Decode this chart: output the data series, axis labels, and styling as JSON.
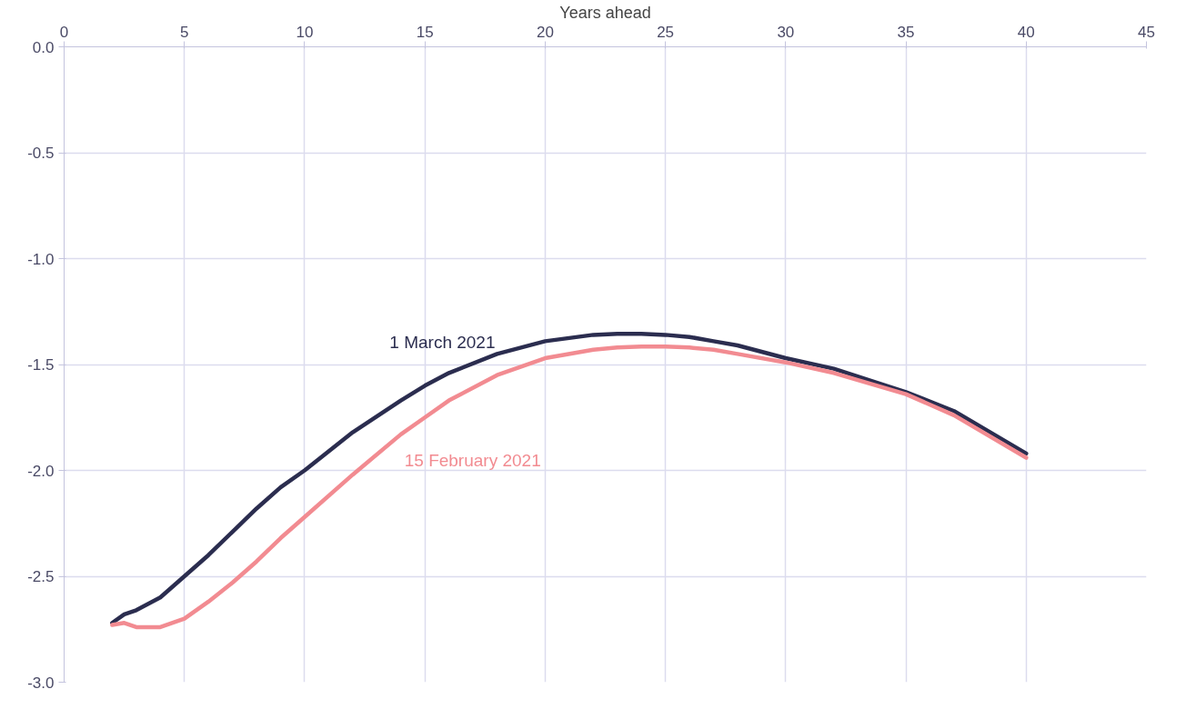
{
  "chart_data": {
    "type": "line",
    "xlabel": "Years ahead",
    "x": [
      2,
      2.5,
      3,
      4,
      5,
      6,
      7,
      8,
      9,
      10,
      12,
      14,
      15,
      16,
      18,
      20,
      22,
      23,
      24,
      25,
      26,
      27,
      28,
      30,
      32,
      35,
      37,
      40
    ],
    "series": [
      {
        "name": "1 March 2021",
        "color": "#2b2d4f",
        "values": [
          -2.72,
          -2.68,
          -2.66,
          -2.6,
          -2.5,
          -2.4,
          -2.29,
          -2.18,
          -2.08,
          -2.0,
          -1.82,
          -1.67,
          -1.6,
          -1.54,
          -1.45,
          -1.39,
          -1.36,
          -1.355,
          -1.355,
          -1.36,
          -1.37,
          -1.39,
          -1.41,
          -1.47,
          -1.52,
          -1.63,
          -1.72,
          -1.92
        ]
      },
      {
        "name": "15 February 2021",
        "color": "#f28b91",
        "values": [
          -2.73,
          -2.72,
          -2.74,
          -2.74,
          -2.7,
          -2.62,
          -2.53,
          -2.43,
          -2.32,
          -2.22,
          -2.02,
          -1.83,
          -1.75,
          -1.67,
          -1.55,
          -1.47,
          -1.43,
          -1.42,
          -1.415,
          -1.415,
          -1.42,
          -1.43,
          -1.45,
          -1.49,
          -1.54,
          -1.64,
          -1.74,
          -1.94
        ]
      }
    ],
    "xlim": [
      0,
      45
    ],
    "xticks": [
      0,
      5,
      10,
      15,
      20,
      25,
      30,
      35,
      40,
      45
    ],
    "ylim": [
      -3,
      0
    ],
    "yticks": [
      {
        "value": 0,
        "label": "0.0"
      },
      {
        "value": -0.5,
        "label": "-0.5"
      },
      {
        "value": -1,
        "label": "-1.0"
      },
      {
        "value": -1.5,
        "label": "-1.5"
      },
      {
        "value": -2,
        "label": "-2.0"
      },
      {
        "value": -2.5,
        "label": "-2.5"
      },
      {
        "value": -3,
        "label": "-3.0"
      }
    ],
    "grid": true,
    "marker": "none",
    "line_style": "solid"
  }
}
